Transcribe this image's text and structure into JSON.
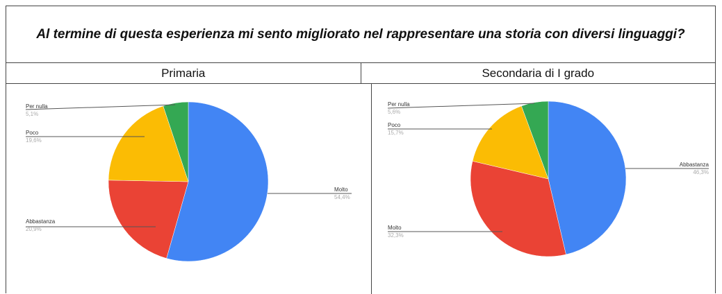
{
  "title": "Al termine di questa esperienza mi sento migliorato nel rappresentare una storia con diversi linguaggi?",
  "columns": [
    "Primaria",
    "Secondaria di I grado"
  ],
  "chart_data": [
    {
      "type": "pie",
      "title": "Primaria",
      "slices": [
        {
          "label": "Molto",
          "value": 54.4,
          "display": "54,4%",
          "color": "#4285f4"
        },
        {
          "label": "Abbastanza",
          "value": 20.9,
          "display": "20,9%",
          "color": "#ea4335"
        },
        {
          "label": "Poco",
          "value": 19.6,
          "display": "19,6%",
          "color": "#fbbc04"
        },
        {
          "label": "Per nulla",
          "value": 5.1,
          "display": "5,1%",
          "color": "#34a853"
        }
      ]
    },
    {
      "type": "pie",
      "title": "Secondaria di I grado",
      "slices": [
        {
          "label": "Abbastanza",
          "value": 46.3,
          "display": "46,3%",
          "color": "#4285f4"
        },
        {
          "label": "Molto",
          "value": 32.3,
          "display": "32,3%",
          "color": "#ea4335"
        },
        {
          "label": "Poco",
          "value": 15.7,
          "display": "15,7%",
          "color": "#fbbc04"
        },
        {
          "label": "Per nulla",
          "value": 5.6,
          "display": "5,6%",
          "color": "#34a853"
        }
      ]
    }
  ]
}
